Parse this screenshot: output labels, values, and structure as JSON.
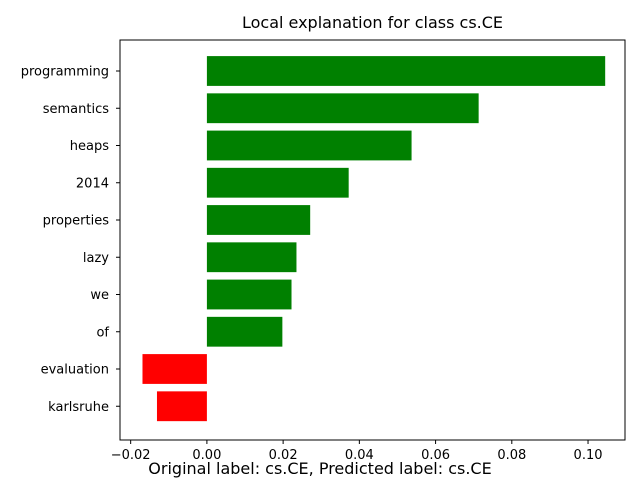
{
  "chart_data": {
    "type": "bar",
    "orientation": "horizontal",
    "title": "Local explanation for class cs.CE",
    "xlabel": "",
    "ylabel": "",
    "categories": [
      "programming",
      "semantics",
      "heaps",
      "2014",
      "properties",
      "lazy",
      "we",
      "of",
      "evaluation",
      "karlsruhe"
    ],
    "values": [
      0.1045,
      0.0713,
      0.0537,
      0.0372,
      0.0271,
      0.0235,
      0.0222,
      0.0198,
      -0.0169,
      -0.0131
    ],
    "bar_colors": [
      "#008000",
      "#008000",
      "#008000",
      "#008000",
      "#008000",
      "#008000",
      "#008000",
      "#008000",
      "#ff0000",
      "#ff0000"
    ],
    "xlim": [
      -0.0228,
      0.1097
    ],
    "xticks": [
      -0.02,
      0.0,
      0.02,
      0.04,
      0.06,
      0.08,
      0.1
    ],
    "xtick_labels": [
      "−0.02",
      "0.00",
      "0.02",
      "0.04",
      "0.06",
      "0.08",
      "0.10"
    ],
    "grid": false,
    "legend": "none"
  },
  "caption": "Original label: cs.CE, Predicted label: cs.CE"
}
